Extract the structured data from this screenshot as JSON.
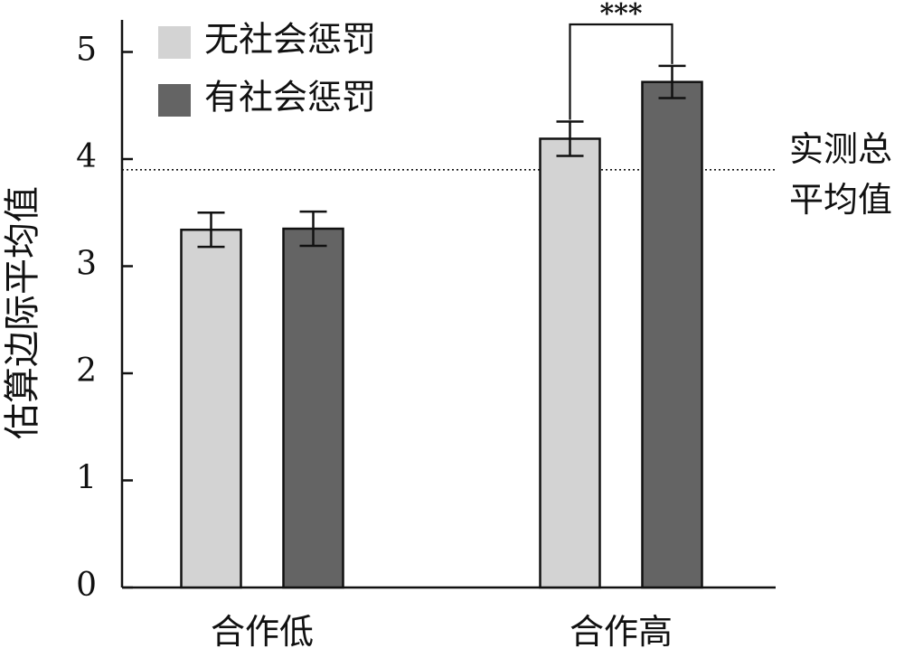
{
  "chart_data": {
    "type": "bar",
    "title": "",
    "xlabel": "",
    "ylabel": "估算边际平均值",
    "ylim": [
      0,
      5.3
    ],
    "yticks": [
      0,
      1,
      2,
      3,
      4,
      5
    ],
    "grid": false,
    "legend_position": "top-left",
    "categories": [
      "合作低",
      "合作高"
    ],
    "series": [
      {
        "name": "无社会惩罚",
        "color": "#d3d3d3",
        "values": [
          3.34,
          4.19
        ],
        "error": [
          0.16,
          0.16
        ]
      },
      {
        "name": "有社会惩罚",
        "color": "#646464",
        "values": [
          3.35,
          4.72
        ],
        "error": [
          0.16,
          0.15
        ]
      }
    ],
    "reference_line": {
      "value": 3.9,
      "style": "dotted",
      "label_lines": [
        "实测总",
        "平均值"
      ]
    },
    "significance": {
      "category": "合作高",
      "text": "***"
    }
  }
}
